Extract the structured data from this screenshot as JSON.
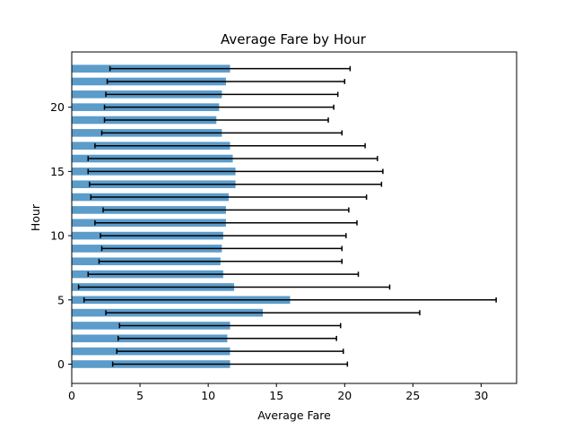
{
  "chart_data": {
    "type": "bar",
    "orientation": "horizontal",
    "title": "Average Fare by Hour",
    "xlabel": "Average Fare",
    "ylabel": "Hour",
    "xlim": [
      0,
      32.6
    ],
    "ylim": [
      -1.5,
      24.3
    ],
    "xticks": [
      0,
      5,
      10,
      15,
      20,
      25,
      30
    ],
    "yticks": [
      0,
      5,
      10,
      15,
      20
    ],
    "grid": false,
    "bar_color": "#5b9ccb",
    "error_color": "#000000",
    "categories": [
      0,
      1,
      2,
      3,
      4,
      5,
      6,
      7,
      8,
      9,
      10,
      11,
      12,
      13,
      14,
      15,
      16,
      17,
      18,
      19,
      20,
      21,
      22,
      23
    ],
    "values": [
      11.6,
      11.6,
      11.4,
      11.6,
      14.0,
      16.0,
      11.9,
      11.1,
      10.9,
      11.0,
      11.1,
      11.3,
      11.3,
      11.5,
      12.0,
      12.0,
      11.8,
      11.6,
      11.0,
      10.6,
      10.8,
      11.0,
      11.3,
      11.6
    ],
    "errors": [
      8.6,
      8.3,
      8.0,
      8.1,
      11.5,
      15.1,
      11.4,
      9.9,
      8.9,
      8.8,
      9.0,
      9.6,
      9.0,
      10.1,
      10.7,
      10.8,
      10.6,
      9.9,
      8.8,
      8.2,
      8.4,
      8.5,
      8.7,
      8.8
    ]
  }
}
